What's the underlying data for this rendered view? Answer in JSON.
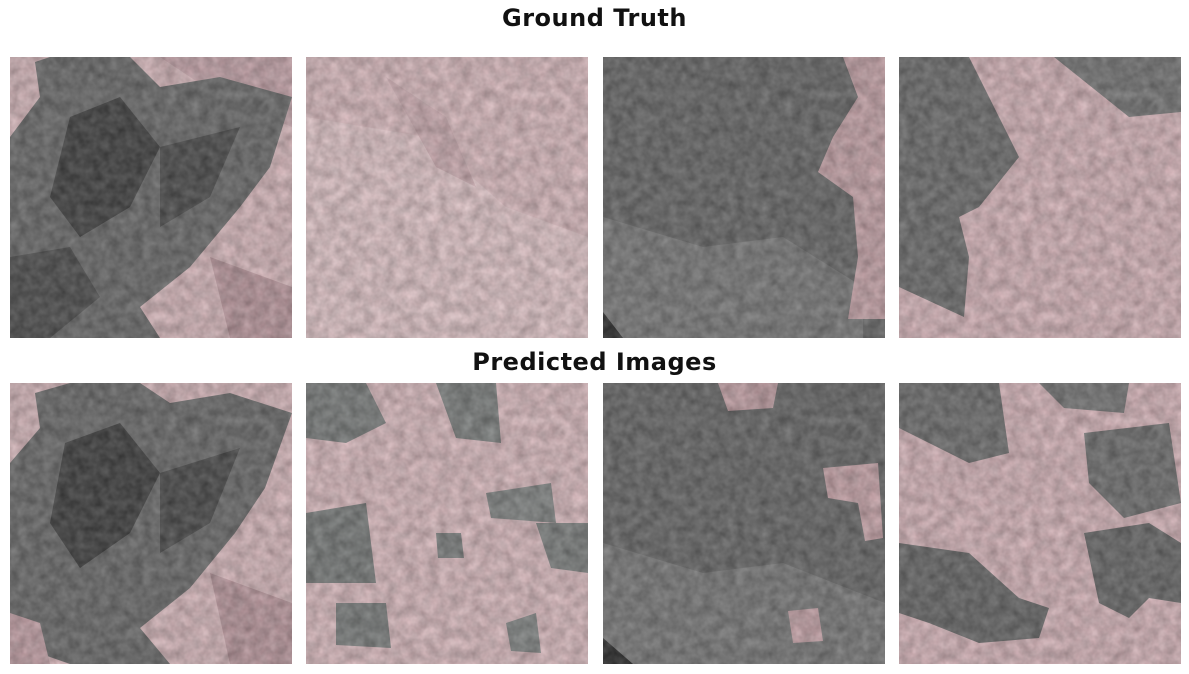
{
  "figure": {
    "ground_truth_title": "Ground Truth",
    "predicted_title": "Predicted Images"
  },
  "colors": {
    "mask_pink": "#e8c4c8",
    "background_gray": "#6f6f6f",
    "dark_gray": "#3e3e3e"
  },
  "panels": {
    "ground_truth": [
      {
        "name": "ground-truth-image-1"
      },
      {
        "name": "ground-truth-image-2"
      },
      {
        "name": "ground-truth-image-3"
      },
      {
        "name": "ground-truth-image-4"
      }
    ],
    "predicted": [
      {
        "name": "predicted-image-1"
      },
      {
        "name": "predicted-image-2"
      },
      {
        "name": "predicted-image-3"
      },
      {
        "name": "predicted-image-4"
      }
    ]
  }
}
